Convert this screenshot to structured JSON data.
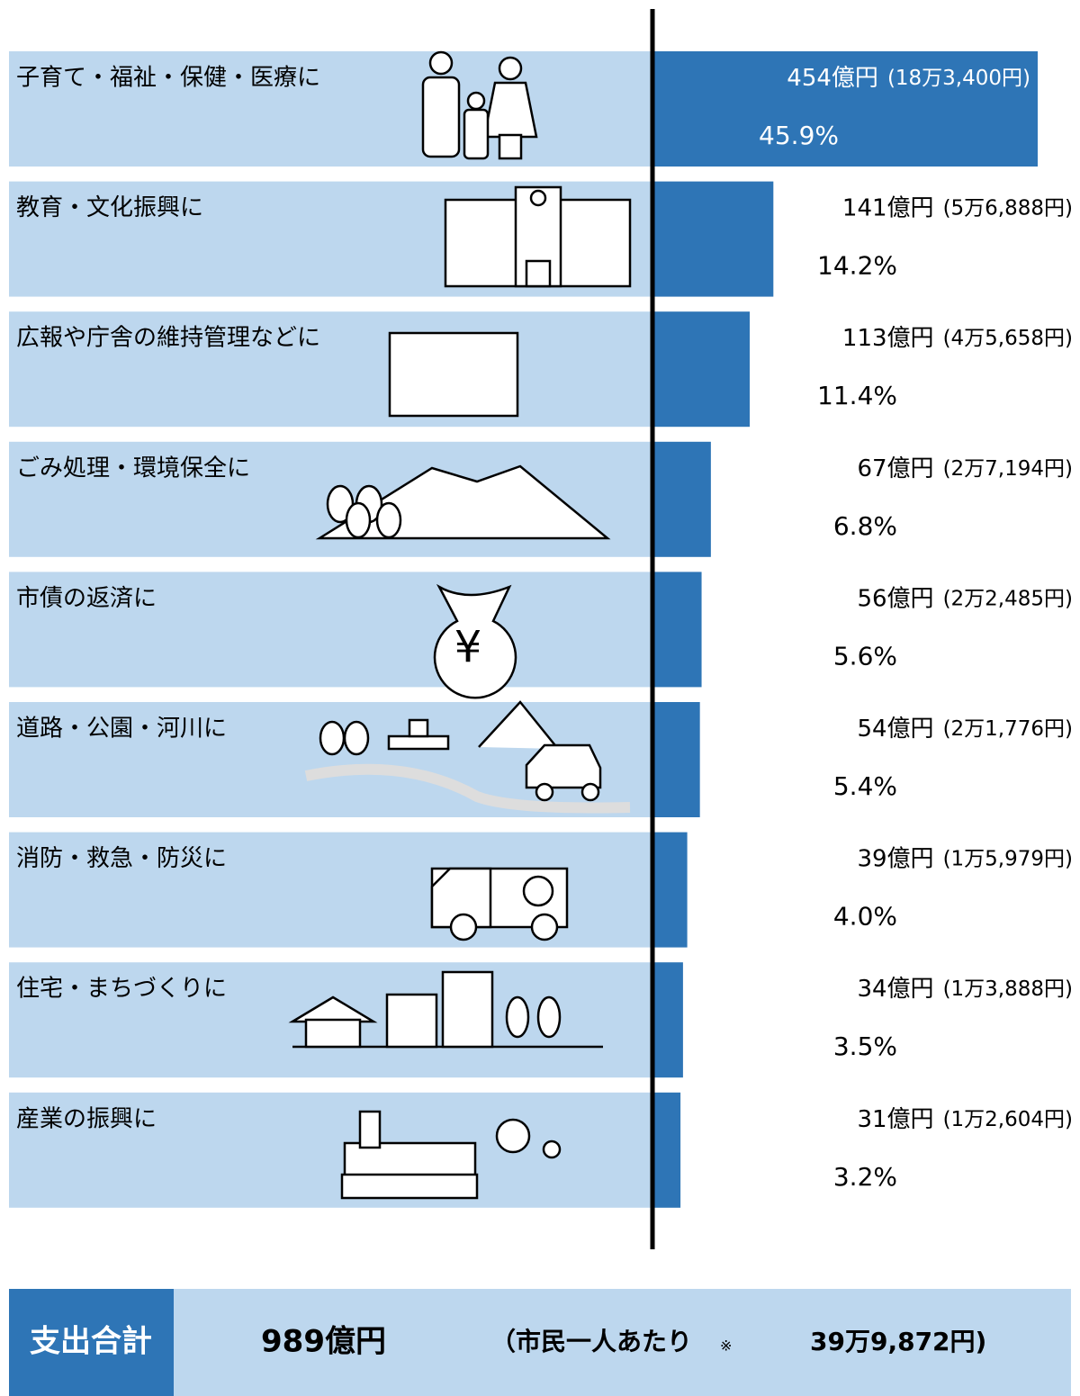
{
  "chart_data": {
    "type": "bar",
    "orientation": "horizontal",
    "categories": [
      "子育て・福祉・保健・医療に",
      "教育・文化振興に",
      "広報や庁舎の維持管理などに",
      "ごみ処理・環境保全に",
      "市債の返済に",
      "道路・公園・河川に",
      "消防・救急・防災に",
      "住宅・まちづくりに",
      "産業の振興に"
    ],
    "values": [
      454,
      141,
      113,
      67,
      56,
      54,
      39,
      34,
      31
    ],
    "value_labels": [
      "454億円",
      "141億円",
      "113億円",
      "67億円",
      "56億円",
      "54億円",
      "39億円",
      "34億円",
      "31億円"
    ],
    "per_capita": [
      183400,
      56888,
      45658,
      27194,
      22485,
      21776,
      15979,
      13888,
      12604
    ],
    "per_capita_labels": [
      "(18万3,400円)",
      "(5万6,888円)",
      "(4万5,658円)",
      "(2万7,194円)",
      "(2万2,485円)",
      "(2万1,776円)",
      "(1万5,979円)",
      "(1万3,888円)",
      "(1万2,604円)"
    ],
    "percentages": [
      45.9,
      14.2,
      11.4,
      6.8,
      5.6,
      5.4,
      4.0,
      3.5,
      3.2
    ],
    "percentage_labels": [
      "45.9%",
      "14.2%",
      "11.4%",
      "6.8%",
      "5.6%",
      "5.4%",
      "4.0%",
      "3.5%",
      "3.2%"
    ],
    "xlim": [
      0,
      454
    ],
    "color": "#2e75b6",
    "total": {
      "title": "支出合計",
      "amount_label": "989億円",
      "per_capita_prefix": "（市民一人あたり",
      "note_mark": "※",
      "per_capita_label": "39万9,872円)"
    }
  }
}
